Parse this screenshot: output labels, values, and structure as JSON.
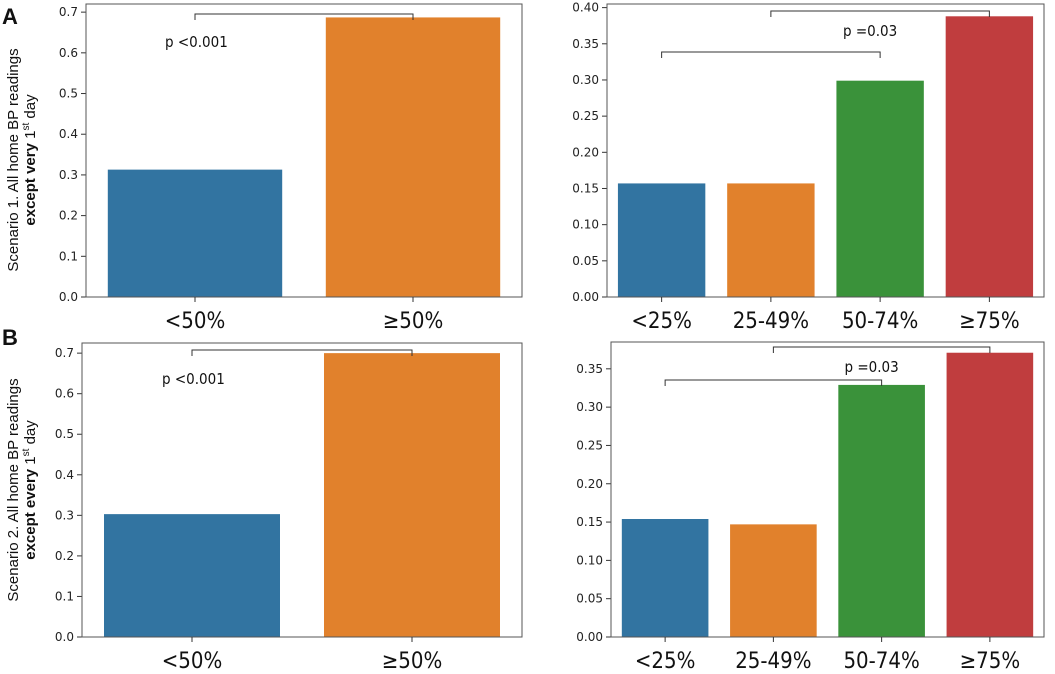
{
  "colors": {
    "c1": "#3274a1",
    "c2": "#e1812c",
    "c3": "#3a923a",
    "c4": "#c03d3e"
  },
  "figure": {
    "panel_labels": [
      "A",
      "B"
    ],
    "row_labels": [
      {
        "line1": "Scenario 1. All home BP readings",
        "bold": "except very",
        "tail": " 1",
        "sup": "st",
        "end": " day"
      },
      {
        "line1": "Scenario 2. All home BP readings",
        "bold": "except every",
        "tail": " 1",
        "sup": "st",
        "end": " day"
      }
    ]
  },
  "chart_data": [
    {
      "type": "bar",
      "categories": [
        "<50%",
        "≥50%"
      ],
      "values": [
        0.313,
        0.687
      ],
      "ylim": [
        0,
        0.72
      ],
      "yticks": [
        0.0,
        0.1,
        0.2,
        0.3,
        0.4,
        0.5,
        0.6,
        0.7
      ],
      "tick_labels": [
        "0.0",
        "0.1",
        "0.2",
        "0.3",
        "0.4",
        "0.5",
        "0.6",
        "0.7"
      ],
      "annotations": [
        {
          "text": "p <0.001",
          "from": 0,
          "to": 1
        }
      ]
    },
    {
      "type": "bar",
      "categories": [
        "<25%",
        "25-49%",
        "50-74%",
        "≥75%"
      ],
      "values": [
        0.157,
        0.157,
        0.299,
        0.388
      ],
      "ylim": [
        0,
        0.405
      ],
      "yticks": [
        0.0,
        0.05,
        0.1,
        0.15,
        0.2,
        0.25,
        0.3,
        0.35,
        0.4
      ],
      "tick_labels": [
        "0.00",
        "0.05",
        "0.10",
        "0.15",
        "0.20",
        "0.25",
        "0.30",
        "0.35",
        "0.40"
      ],
      "annotations": [
        {
          "text": "p =0.03",
          "from": 1,
          "to": 3
        },
        {
          "text": "",
          "from": 0,
          "to": 2
        }
      ]
    },
    {
      "type": "bar",
      "categories": [
        "<50%",
        "≥50%"
      ],
      "values": [
        0.303,
        0.7
      ],
      "ylim": [
        0,
        0.725
      ],
      "yticks": [
        0.0,
        0.1,
        0.2,
        0.3,
        0.4,
        0.5,
        0.6,
        0.7
      ],
      "tick_labels": [
        "0.0",
        "0.1",
        "0.2",
        "0.3",
        "0.4",
        "0.5",
        "0.6",
        "0.7"
      ],
      "annotations": [
        {
          "text": "p <0.001",
          "from": 0,
          "to": 1
        }
      ]
    },
    {
      "type": "bar",
      "categories": [
        "<25%",
        "25-49%",
        "50-74%",
        "≥75%"
      ],
      "values": [
        0.154,
        0.147,
        0.329,
        0.371
      ],
      "ylim": [
        0,
        0.385
      ],
      "yticks": [
        0.0,
        0.05,
        0.1,
        0.15,
        0.2,
        0.25,
        0.3,
        0.35
      ],
      "tick_labels": [
        "0.00",
        "0.05",
        "0.10",
        "0.15",
        "0.20",
        "0.25",
        "0.30",
        "0.35"
      ],
      "annotations": [
        {
          "text": "p =0.03",
          "from": 1,
          "to": 3
        },
        {
          "text": "",
          "from": 0,
          "to": 2
        }
      ]
    }
  ]
}
